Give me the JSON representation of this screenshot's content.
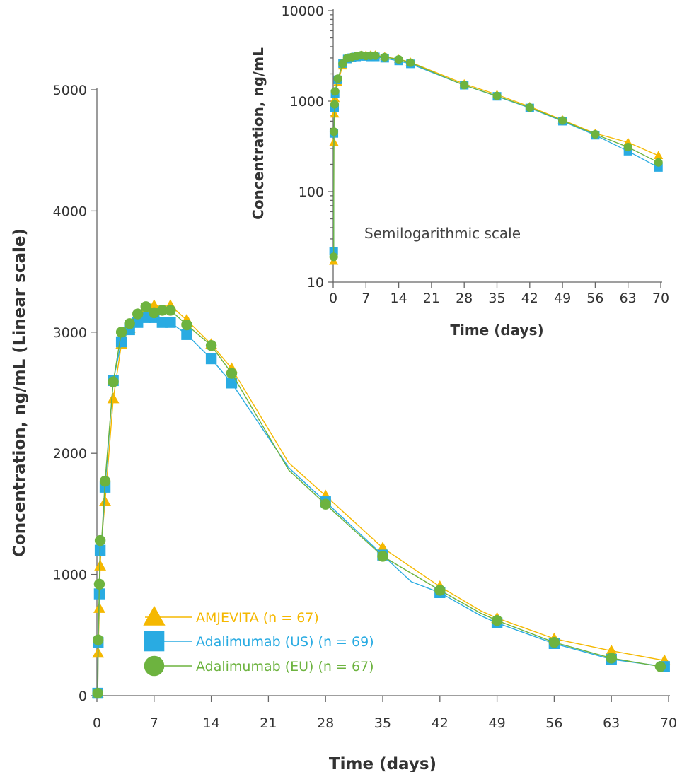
{
  "colors": {
    "amjevita": "#F5B800",
    "adalimumab_us": "#29ABE2",
    "adalimumab_eu": "#6DB33F",
    "axis": "#666666",
    "text": "#333333"
  },
  "chart_data": [
    {
      "id": "main",
      "type": "line",
      "xlabel": "Time (days)",
      "ylabel": "Concentration, ng/mL (Linear scale)",
      "xlim": [
        0,
        70
      ],
      "ylim": [
        0,
        5000
      ],
      "x_ticks": [
        0,
        7,
        14,
        21,
        28,
        35,
        42,
        49,
        56,
        63,
        70
      ],
      "y_ticks": [
        0,
        1000,
        2000,
        3000,
        4000,
        5000
      ],
      "y_tick_labels": [
        "0",
        "1000",
        "2000",
        "3000",
        "4000",
        "5000"
      ],
      "legend_position": "bottom-left",
      "series": [
        {
          "name": "AMJEVITA (n = 67)",
          "color": "#F5B800",
          "marker": "triangle",
          "x": [
            0.1,
            0.15,
            0.3,
            0.4,
            0.6,
            1,
            2,
            3,
            4,
            5,
            6,
            7,
            8,
            9,
            11,
            14,
            16.5,
            23.5,
            28,
            35,
            42,
            47,
            49,
            56,
            63,
            69.5
          ],
          "y": [
            20,
            350,
            720,
            1070,
            1300,
            1600,
            2450,
            2900,
            3030,
            3140,
            3200,
            3220,
            3220,
            3220,
            3100,
            2900,
            2700,
            1920,
            1650,
            1220,
            900,
            700,
            640,
            470,
            370,
            290
          ],
          "markers": [
            0.1,
            0.15,
            0.3,
            0.4,
            1,
            2,
            3,
            4,
            5,
            6,
            7,
            9,
            11,
            14,
            16.5,
            28,
            35,
            42,
            49,
            56,
            63,
            69.5
          ]
        },
        {
          "name": "Adalimumab (US) (n = 69)",
          "color": "#29ABE2",
          "marker": "square",
          "x": [
            0.1,
            0.15,
            0.3,
            0.4,
            0.6,
            1,
            2,
            3,
            4,
            5,
            6,
            7,
            8,
            9,
            11,
            14,
            16.5,
            23.5,
            28,
            35,
            38.5,
            42,
            47,
            49,
            56,
            63,
            69.5
          ],
          "y": [
            20,
            440,
            840,
            1200,
            1260,
            1720,
            2600,
            2920,
            3020,
            3080,
            3120,
            3120,
            3080,
            3080,
            2980,
            2780,
            2580,
            1880,
            1600,
            1160,
            940,
            850,
            660,
            600,
            430,
            300,
            240
          ],
          "markers": [
            0.1,
            0.15,
            0.3,
            0.4,
            1,
            2,
            3,
            4,
            5,
            6,
            7,
            8,
            9,
            11,
            14,
            16.5,
            28,
            35,
            42,
            49,
            56,
            63,
            69.5
          ]
        },
        {
          "name": "Adalimumab (EU) (n = 67)",
          "color": "#6DB33F",
          "marker": "circle",
          "x": [
            0.1,
            0.15,
            0.3,
            0.4,
            0.6,
            1,
            2,
            3,
            4,
            5,
            6,
            7,
            8,
            9,
            11,
            14,
            16.5,
            23.5,
            28,
            35,
            42,
            47,
            49,
            56,
            63,
            69
          ],
          "y": [
            20,
            460,
            920,
            1280,
            1300,
            1770,
            2590,
            3000,
            3070,
            3150,
            3210,
            3160,
            3180,
            3180,
            3060,
            2890,
            2660,
            1860,
            1580,
            1150,
            870,
            680,
            620,
            440,
            310,
            240
          ],
          "markers": [
            0.1,
            0.15,
            0.3,
            0.4,
            1,
            2,
            3,
            4,
            5,
            6,
            7,
            8,
            9,
            11,
            14,
            16.5,
            28,
            35,
            42,
            49,
            56,
            63,
            69
          ]
        }
      ]
    },
    {
      "id": "inset",
      "type": "line",
      "scale": "log",
      "annotation": "Semilogarithmic scale",
      "xlabel": "Time (days)",
      "ylabel": "Concentration, ng/mL",
      "xlim": [
        0,
        70
      ],
      "ylim": [
        10,
        10000
      ],
      "x_ticks": [
        0,
        7,
        14,
        21,
        28,
        35,
        42,
        49,
        56,
        63,
        70
      ],
      "y_ticks": [
        10,
        100,
        1000,
        10000
      ],
      "y_tick_labels": [
        "10",
        "100",
        "1000",
        "10000"
      ],
      "series": [
        {
          "name": "AMJEVITA",
          "color": "#F5B800",
          "marker": "triangle",
          "x": [
            0.1,
            0.15,
            0.3,
            0.4,
            1,
            2,
            3,
            4,
            5,
            6,
            7,
            8,
            9,
            11,
            14,
            16.5,
            28,
            35,
            42,
            49,
            56,
            63,
            69.5
          ],
          "y": [
            17,
            350,
            720,
            1070,
            1600,
            2450,
            2900,
            3030,
            3140,
            3200,
            3220,
            3220,
            3220,
            3100,
            2900,
            2700,
            1550,
            1180,
            870,
            620,
            440,
            350,
            250
          ]
        },
        {
          "name": "Adalimumab (US)",
          "color": "#29ABE2",
          "marker": "square",
          "x": [
            0.1,
            0.15,
            0.3,
            0.4,
            1,
            2,
            3,
            4,
            5,
            6,
            7,
            8,
            9,
            11,
            14,
            16.5,
            28,
            35,
            42,
            49,
            56,
            63,
            69.5
          ],
          "y": [
            22,
            440,
            840,
            1200,
            1720,
            2600,
            2920,
            3020,
            3080,
            3120,
            3120,
            3080,
            3080,
            2980,
            2780,
            2580,
            1500,
            1130,
            840,
            600,
            420,
            280,
            185
          ]
        },
        {
          "name": "Adalimumab (EU)",
          "color": "#6DB33F",
          "marker": "circle",
          "x": [
            0.1,
            0.15,
            0.3,
            0.4,
            1,
            2,
            3,
            4,
            5,
            6,
            7,
            8,
            9,
            11,
            14,
            16.5,
            28,
            35,
            42,
            49,
            56,
            63,
            69.5
          ],
          "y": [
            19,
            460,
            920,
            1280,
            1770,
            2590,
            3000,
            3070,
            3150,
            3210,
            3160,
            3180,
            3180,
            3060,
            2890,
            2660,
            1500,
            1140,
            850,
            610,
            430,
            310,
            210
          ]
        }
      ]
    }
  ]
}
